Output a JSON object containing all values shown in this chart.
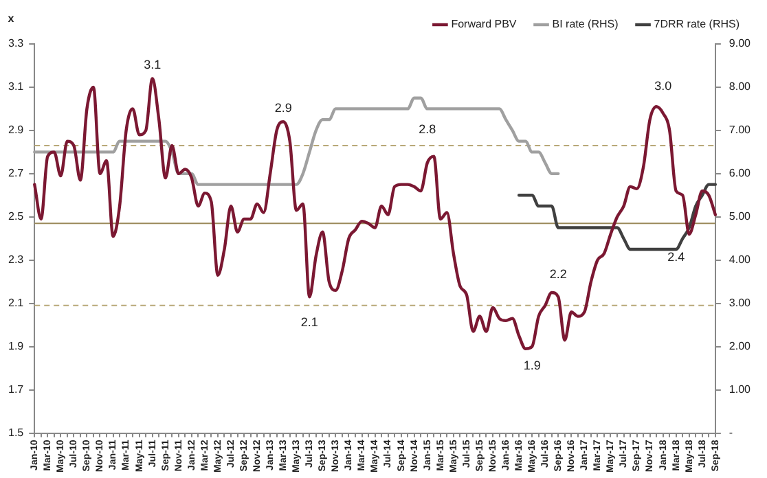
{
  "chart_data": {
    "type": "line",
    "ylabel": "x",
    "categories": [
      "Jan-10",
      null,
      "Mar-10",
      null,
      "May-10",
      null,
      "Jul-10",
      null,
      "Sep-10",
      null,
      "Nov-10",
      null,
      "Jan-11",
      null,
      "Mar-11",
      null,
      "May-11",
      null,
      "Jul-11",
      null,
      "Sep-11",
      null,
      "Nov-11",
      null,
      "Jan-12",
      null,
      "Mar-12",
      null,
      "May-12",
      null,
      "Jul-12",
      null,
      "Sep-12",
      null,
      "Nov-12",
      null,
      "Jan-13",
      null,
      "Mar-13",
      null,
      "May-13",
      null,
      "Jul-13",
      null,
      "Sep-13",
      null,
      "Nov-13",
      null,
      "Jan-14",
      null,
      "Mar-14",
      null,
      "May-14",
      null,
      "Jul-14",
      null,
      "Sep-14",
      null,
      "Nov-14",
      null,
      "Jan-15",
      null,
      "Mar-15",
      null,
      "May-15",
      null,
      "Jul-15",
      null,
      "Sep-15",
      null,
      "Nov-15",
      null,
      "Jan-16",
      null,
      "Mar-16",
      null,
      "May-16",
      null,
      "Jul-16",
      null,
      "Sep-16",
      null,
      "Nov-16",
      null,
      "Jan-17",
      null,
      "Mar-17",
      null,
      "May-17",
      null,
      "Jul-17",
      null,
      "Sep-17",
      null,
      "Nov-17",
      null,
      "Jan-18",
      null,
      "Mar-18",
      null,
      "May-18",
      null,
      "Jul-18",
      null,
      "Sep-18"
    ],
    "series": [
      {
        "name": "Forward PBV",
        "color": "#7b1832",
        "values": [
          2.65,
          2.49,
          2.78,
          2.8,
          2.69,
          2.85,
          2.83,
          2.67,
          3.0,
          3.1,
          2.7,
          2.76,
          2.41,
          2.55,
          2.9,
          3.0,
          2.88,
          2.9,
          3.14,
          2.95,
          2.68,
          2.83,
          2.7,
          2.72,
          2.68,
          2.55,
          2.61,
          2.57,
          2.23,
          2.35,
          2.55,
          2.43,
          2.49,
          2.49,
          2.56,
          2.52,
          2.7,
          2.9,
          2.94,
          2.85,
          2.53,
          2.56,
          2.13,
          2.32,
          2.43,
          2.2,
          2.16,
          2.25,
          2.4,
          2.44,
          2.48,
          2.47,
          2.45,
          2.55,
          2.51,
          2.64,
          2.65,
          2.65,
          2.64,
          2.62,
          2.75,
          2.78,
          2.49,
          2.52,
          2.33,
          2.18,
          2.14,
          1.97,
          2.04,
          1.97,
          2.08,
          2.03,
          2.02,
          2.03,
          1.95,
          1.89,
          1.9,
          2.04,
          2.09,
          2.15,
          2.13,
          1.93,
          2.06,
          2.04,
          2.06,
          2.2,
          2.3,
          2.33,
          2.42,
          2.5,
          2.55,
          2.64,
          2.63,
          2.73,
          2.95,
          3.01,
          2.98,
          2.9,
          2.62,
          2.6,
          2.42,
          2.51,
          2.62,
          2.6,
          2.51
        ]
      },
      {
        "name": "BI rate (RHS)",
        "color": "#a0a0a0",
        "axis": "y2",
        "values": [
          6.5,
          6.5,
          6.5,
          6.5,
          6.5,
          6.5,
          6.5,
          6.5,
          6.5,
          6.5,
          6.5,
          6.5,
          6.5,
          6.75,
          6.75,
          6.75,
          6.75,
          6.75,
          6.75,
          6.75,
          6.75,
          6.5,
          6.0,
          6.0,
          6.0,
          5.75,
          5.75,
          5.75,
          5.75,
          5.75,
          5.75,
          5.75,
          5.75,
          5.75,
          5.75,
          5.75,
          5.75,
          5.75,
          5.75,
          5.75,
          5.75,
          6.0,
          6.5,
          7.0,
          7.25,
          7.25,
          7.5,
          7.5,
          7.5,
          7.5,
          7.5,
          7.5,
          7.5,
          7.5,
          7.5,
          7.5,
          7.5,
          7.5,
          7.75,
          7.75,
          7.5,
          7.5,
          7.5,
          7.5,
          7.5,
          7.5,
          7.5,
          7.5,
          7.5,
          7.5,
          7.5,
          7.5,
          7.25,
          7.0,
          6.75,
          6.75,
          6.5,
          6.5,
          6.25,
          6.0,
          6.0,
          null,
          null,
          null,
          null,
          null,
          null,
          null,
          null,
          null,
          null,
          null,
          null,
          null,
          null,
          null,
          null,
          null,
          null,
          null,
          null,
          null,
          null,
          null,
          null
        ]
      },
      {
        "name": "7DRR rate (RHS)",
        "color": "#404040",
        "axis": "y2",
        "values": [
          null,
          null,
          null,
          null,
          null,
          null,
          null,
          null,
          null,
          null,
          null,
          null,
          null,
          null,
          null,
          null,
          null,
          null,
          null,
          null,
          null,
          null,
          null,
          null,
          null,
          null,
          null,
          null,
          null,
          null,
          null,
          null,
          null,
          null,
          null,
          null,
          null,
          null,
          null,
          null,
          null,
          null,
          null,
          null,
          null,
          null,
          null,
          null,
          null,
          null,
          null,
          null,
          null,
          null,
          null,
          null,
          null,
          null,
          null,
          null,
          null,
          null,
          null,
          null,
          null,
          null,
          null,
          null,
          null,
          null,
          null,
          null,
          null,
          null,
          5.5,
          5.5,
          5.5,
          5.25,
          5.25,
          5.25,
          4.75,
          4.75,
          4.75,
          4.75,
          4.75,
          4.75,
          4.75,
          4.75,
          4.75,
          4.75,
          4.5,
          4.25,
          4.25,
          4.25,
          4.25,
          4.25,
          4.25,
          4.25,
          4.25,
          4.5,
          4.75,
          5.25,
          5.5,
          5.75,
          5.75
        ]
      }
    ],
    "ylim": [
      1.5,
      3.3
    ],
    "yticks": [
      1.5,
      1.7,
      1.9,
      2.1,
      2.3,
      2.5,
      2.7,
      2.9,
      3.1,
      3.3
    ],
    "y2lim": [
      0,
      9
    ],
    "y2ticks": [
      {
        "value": 0,
        "label": "-"
      },
      {
        "value": 1,
        "label": "1.00"
      },
      {
        "value": 2,
        "label": "2.00"
      },
      {
        "value": 3,
        "label": "3.00"
      },
      {
        "value": 4,
        "label": "4.00"
      },
      {
        "value": 5,
        "label": "5.00"
      },
      {
        "value": 6,
        "label": "6.00"
      },
      {
        "value": 7,
        "label": "7.00"
      },
      {
        "value": 8,
        "label": "8.00"
      },
      {
        "value": 9,
        "label": "9.00"
      }
    ],
    "ref_lines": [
      {
        "axis": "y",
        "value": 2.83,
        "color": "#b8a878",
        "line_style": "dashed"
      },
      {
        "axis": "y",
        "value": 2.47,
        "color": "#9a8a5a",
        "line_style": "solid"
      },
      {
        "axis": "y",
        "value": 2.09,
        "color": "#b8a878",
        "line_style": "dashed"
      }
    ],
    "annotations": [
      {
        "text": "3.1",
        "x": "Jul-11",
        "y": 3.1
      },
      {
        "text": "2.9",
        "x": "Mar-13",
        "y": 2.9
      },
      {
        "text": "2.1",
        "x": "Jul-13",
        "y": 2.1
      },
      {
        "text": "2.8",
        "x": "Jan-15",
        "y": 2.8
      },
      {
        "text": "1.9",
        "x": "May-16",
        "y": 1.9
      },
      {
        "text": "2.2",
        "x": "Sep-16",
        "y": 2.13
      },
      {
        "text": "3.0",
        "x": "Jan-18",
        "y": 3.0
      },
      {
        "text": "2.4",
        "x": "Mar-18",
        "y": 2.4
      }
    ],
    "legend": "top",
    "marker": "none",
    "line_style": "solid"
  }
}
